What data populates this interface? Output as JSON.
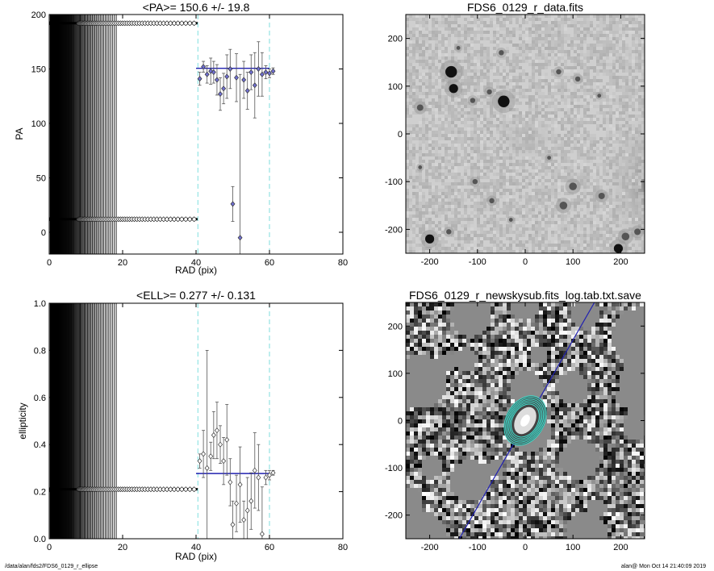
{
  "footer": {
    "left": "/data/alan/fds2/FDS6_0129_r_ellipse",
    "right": "alan@  Mon Oct 14 21:40:09 2019"
  },
  "colors": {
    "fit_line": "#2020b0",
    "marker_fill": "#7070d0",
    "dashed": "#7fdede",
    "contour": "#40e0d0"
  },
  "chart_data": [
    {
      "id": "pa",
      "type": "scatter",
      "title": "<PA>= 150.6 +/-  19.8",
      "xlabel": "RAD (pix)",
      "ylabel": "PA",
      "xlim": [
        0,
        80
      ],
      "ylim": [
        -20,
        200
      ],
      "xticks": [
        0,
        20,
        40,
        60,
        80
      ],
      "yticks": [
        0,
        50,
        100,
        150,
        200
      ],
      "mean": 150.6,
      "fit_range": [
        40,
        60
      ],
      "dashed_x": [
        40.5,
        60
      ],
      "top_band_y": 192,
      "bottom_band_y": 12,
      "points": [
        {
          "x": 41.0,
          "y": 141,
          "err": 6
        },
        {
          "x": 42.0,
          "y": 152,
          "err": 5
        },
        {
          "x": 43.0,
          "y": 145,
          "err": 8
        },
        {
          "x": 44.0,
          "y": 148,
          "err": 12
        },
        {
          "x": 44.8,
          "y": 147,
          "err": 10
        },
        {
          "x": 45.7,
          "y": 140,
          "err": 14
        },
        {
          "x": 46.6,
          "y": 127,
          "err": 15
        },
        {
          "x": 47.5,
          "y": 132,
          "err": 14
        },
        {
          "x": 48.4,
          "y": 143,
          "err": 20
        },
        {
          "x": 49.3,
          "y": 150,
          "err": 18
        },
        {
          "x": 50.0,
          "y": 26,
          "err": 16
        },
        {
          "x": 51.0,
          "y": 142,
          "err": 22
        },
        {
          "x": 52.0,
          "y": -5,
          "err": 150
        },
        {
          "x": 53.0,
          "y": 140,
          "err": 17
        },
        {
          "x": 54.0,
          "y": 130,
          "err": 17
        },
        {
          "x": 55.0,
          "y": 147,
          "err": 16
        },
        {
          "x": 56.0,
          "y": 135,
          "err": 30
        },
        {
          "x": 57.0,
          "y": 150,
          "err": 25
        },
        {
          "x": 58.0,
          "y": 145,
          "err": 20
        },
        {
          "x": 59.0,
          "y": 147,
          "err": 6
        },
        {
          "x": 60.0,
          "y": 146,
          "err": 4
        },
        {
          "x": 61.0,
          "y": 148,
          "err": 3
        }
      ]
    },
    {
      "id": "ell",
      "type": "scatter",
      "title": "<ELL>= 0.277 +/-  0.131",
      "xlabel": "RAD (pix)",
      "ylabel": "ellipticity",
      "xlim": [
        0,
        80
      ],
      "ylim": [
        0,
        1
      ],
      "xticks": [
        0,
        20,
        40,
        60,
        80
      ],
      "yticks": [
        0.0,
        0.2,
        0.4,
        0.6,
        0.8,
        1.0
      ],
      "mean": 0.277,
      "fit_range": [
        40,
        60
      ],
      "dashed_x": [
        40.5,
        60
      ],
      "band_y": 0.21,
      "points": [
        {
          "x": 41.0,
          "y": 0.33,
          "err": 0.03
        },
        {
          "x": 42.0,
          "y": 0.36,
          "err": 0.1
        },
        {
          "x": 43.0,
          "y": 0.3,
          "err": 0.5
        },
        {
          "x": 44.0,
          "y": 0.35,
          "err": 0.06
        },
        {
          "x": 44.8,
          "y": 0.44,
          "err": 0.1
        },
        {
          "x": 45.7,
          "y": 0.46,
          "err": 0.12
        },
        {
          "x": 46.6,
          "y": 0.4,
          "err": 0.08
        },
        {
          "x": 47.5,
          "y": 0.33,
          "err": 0.1
        },
        {
          "x": 48.4,
          "y": 0.42,
          "err": 0.15
        },
        {
          "x": 49.3,
          "y": 0.24,
          "err": 0.1
        },
        {
          "x": 50.0,
          "y": 0.06,
          "err": 0.1
        },
        {
          "x": 51.0,
          "y": 0.15,
          "err": 0.12
        },
        {
          "x": 52.0,
          "y": 0.23,
          "err": 0.16
        },
        {
          "x": 53.0,
          "y": 0.08,
          "err": 0.08
        },
        {
          "x": 54.0,
          "y": 0.12,
          "err": 0.14
        },
        {
          "x": 55.0,
          "y": 0.16,
          "err": 0.12
        },
        {
          "x": 56.0,
          "y": 0.29,
          "err": 0.16
        },
        {
          "x": 57.0,
          "y": 0.26,
          "err": 0.14
        },
        {
          "x": 58.0,
          "y": 0.02,
          "err": 0.2
        },
        {
          "x": 59.0,
          "y": 0.26,
          "err": 0.03
        },
        {
          "x": 60.0,
          "y": 0.27,
          "err": 0.02
        },
        {
          "x": 61.0,
          "y": 0.28,
          "err": 0.01
        }
      ]
    },
    {
      "id": "img_data",
      "type": "heatmap",
      "title": "FDS6_0129_r_data.fits",
      "xlim": [
        -250,
        250
      ],
      "ylim": [
        -250,
        250
      ],
      "xticks": [
        -200,
        -100,
        0,
        100,
        200
      ],
      "yticks": [
        -200,
        -100,
        0,
        100,
        200
      ],
      "sources": [
        {
          "x": -155,
          "y": 130,
          "r": 9
        },
        {
          "x": -150,
          "y": 95,
          "r": 7
        },
        {
          "x": -45,
          "y": 68,
          "r": 9
        },
        {
          "x": -110,
          "y": 70,
          "r": 4
        },
        {
          "x": -50,
          "y": 170,
          "r": 4
        },
        {
          "x": 70,
          "y": 130,
          "r": 4
        },
        {
          "x": 110,
          "y": 115,
          "r": 4
        },
        {
          "x": -75,
          "y": 88,
          "r": 4
        },
        {
          "x": 155,
          "y": 80,
          "r": 3
        },
        {
          "x": -220,
          "y": 55,
          "r": 5
        },
        {
          "x": -105,
          "y": -100,
          "r": 4
        },
        {
          "x": -70,
          "y": -140,
          "r": 4
        },
        {
          "x": -30,
          "y": -180,
          "r": 3
        },
        {
          "x": 100,
          "y": -110,
          "r": 6
        },
        {
          "x": 80,
          "y": -150,
          "r": 6
        },
        {
          "x": 160,
          "y": -130,
          "r": 5
        },
        {
          "x": 210,
          "y": -215,
          "r": 6
        },
        {
          "x": 195,
          "y": -240,
          "r": 7
        },
        {
          "x": -200,
          "y": -220,
          "r": 7
        },
        {
          "x": -160,
          "y": -205,
          "r": 4
        },
        {
          "x": 235,
          "y": -205,
          "r": 5
        },
        {
          "x": -220,
          "y": -70,
          "r": 3
        },
        {
          "x": 50,
          "y": -50,
          "r": 3
        },
        {
          "x": -140,
          "y": 180,
          "r": 3
        }
      ]
    },
    {
      "id": "img_sky",
      "type": "heatmap",
      "title": "FDS6_0129_r_newskysub.fits_log.tab.txt.save",
      "xlim": [
        -250,
        250
      ],
      "ylim": [
        -250,
        250
      ],
      "xticks": [
        -200,
        -100,
        0,
        100,
        200
      ],
      "yticks": [
        -200,
        -100,
        0,
        100,
        200
      ],
      "pa_line": [
        [
          -138,
          -250
        ],
        [
          145,
          250
        ]
      ],
      "ellipse_center": [
        0,
        0
      ],
      "ellipse_pa_deg": 150.6,
      "ellipse_radii": [
        40,
        44,
        48,
        52,
        56,
        60
      ]
    }
  ]
}
